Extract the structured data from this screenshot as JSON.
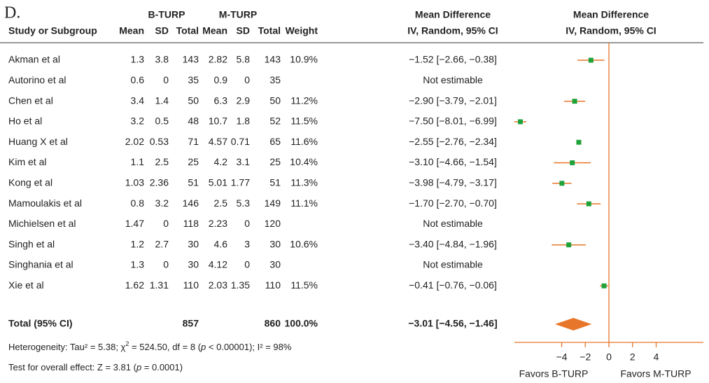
{
  "panel_label": "D.",
  "group_headers": [
    "B-TURP",
    "M-TURP",
    "Mean Difference",
    "Mean Difference"
  ],
  "column_headers": [
    "Study or Subgroup",
    "Mean",
    "SD",
    "Total",
    "Mean",
    "SD",
    "Total",
    "Weight",
    "IV, Random, 95% CI",
    "IV, Random, 95% CI"
  ],
  "studies": [
    {
      "name": "Akman et al",
      "b_mean": 1.3,
      "b_sd": 3.8,
      "b_total": 143,
      "m_mean": 2.82,
      "m_sd": 5.8,
      "m_total": 143,
      "weight": "10.9%",
      "ci_text": "−1.52 [−2.66, −0.38]",
      "md": -1.52,
      "lo": -2.66,
      "hi": -0.38
    },
    {
      "name": "Autorino et al",
      "b_mean": 0.6,
      "b_sd": 0,
      "b_total": 35,
      "m_mean": 0.9,
      "m_sd": 0,
      "m_total": 35,
      "ci_text": "Not estimable"
    },
    {
      "name": "Chen et al",
      "b_mean": 3.4,
      "b_sd": 1.4,
      "b_total": 50,
      "m_mean": 6.3,
      "m_sd": 2.9,
      "m_total": 50,
      "weight": "11.2%",
      "ci_text": "−2.90 [−3.79, −2.01]",
      "md": -2.9,
      "lo": -3.79,
      "hi": -2.01
    },
    {
      "name": "Ho et al",
      "b_mean": 3.2,
      "b_sd": 0.5,
      "b_total": 48,
      "m_mean": 10.7,
      "m_sd": 1.8,
      "m_total": 52,
      "weight": "11.5%",
      "ci_text": "−7.50 [−8.01, −6.99]",
      "md": -7.5,
      "lo": -8.01,
      "hi": -6.99
    },
    {
      "name": "Huang X et al",
      "b_mean": 2.02,
      "b_sd": 0.53,
      "b_total": 71,
      "m_mean": 4.57,
      "m_sd": 0.71,
      "m_total": 65,
      "weight": "11.6%",
      "ci_text": "−2.55 [−2.76, −2.34]",
      "md": -2.55,
      "lo": -2.76,
      "hi": -2.34
    },
    {
      "name": "Kim et al",
      "b_mean": 1.1,
      "b_sd": 2.5,
      "b_total": 25,
      "m_mean": 4.2,
      "m_sd": 3.1,
      "m_total": 25,
      "weight": "10.4%",
      "ci_text": "−3.10 [−4.66, −1.54]",
      "md": -3.1,
      "lo": -4.66,
      "hi": -1.54
    },
    {
      "name": "Kong et al",
      "b_mean": 1.03,
      "b_sd": 2.36,
      "b_total": 51,
      "m_mean": 5.01,
      "m_sd": 1.77,
      "m_total": 51,
      "weight": "11.3%",
      "ci_text": "−3.98 [−4.79, −3.17]",
      "md": -3.98,
      "lo": -4.79,
      "hi": -3.17
    },
    {
      "name": "Mamoulakis et al",
      "b_mean": 0.8,
      "b_sd": 3.2,
      "b_total": 146,
      "m_mean": 2.5,
      "m_sd": 5.3,
      "m_total": 149,
      "weight": "11.1%",
      "ci_text": "−1.70 [−2.70, −0.70]",
      "md": -1.7,
      "lo": -2.7,
      "hi": -0.7
    },
    {
      "name": "Michielsen et al",
      "b_mean": 1.47,
      "b_sd": 0,
      "b_total": 118,
      "m_mean": 2.23,
      "m_sd": 0,
      "m_total": 120,
      "ci_text": "Not estimable"
    },
    {
      "name": "Singh et al",
      "b_mean": 1.2,
      "b_sd": 2.7,
      "b_total": 30,
      "m_mean": 4.6,
      "m_sd": 3,
      "m_total": 30,
      "weight": "10.6%",
      "ci_text": "−3.40 [−4.84, −1.96]",
      "md": -3.4,
      "lo": -4.84,
      "hi": -1.96
    },
    {
      "name": "Singhania et al",
      "b_mean": 1.3,
      "b_sd": 0,
      "b_total": 30,
      "m_mean": 4.12,
      "m_sd": 0,
      "m_total": 30,
      "ci_text": "Not estimable"
    },
    {
      "name": "Xie et al",
      "b_mean": 1.62,
      "b_sd": 1.31,
      "b_total": 110,
      "m_mean": 2.03,
      "m_sd": 1.35,
      "m_total": 110,
      "weight": "11.5%",
      "ci_text": "−0.41 [−0.76, −0.06]",
      "md": -0.41,
      "lo": -0.76,
      "hi": -0.06
    }
  ],
  "total": {
    "name": "Total (95% CI)",
    "b_total": 857,
    "m_total": 860,
    "weight": "100.0%",
    "ci_text": "−3.01 [−4.56, −1.46]",
    "md": -3.01,
    "lo": -4.56,
    "hi": -1.46
  },
  "heterogeneity": [
    "Heterogeneity: Tau² = 5.38; χ",
    "2",
    " = 524.50, df = 8 (",
    "p",
    " < 0.00001); I² = 98%"
  ],
  "overall_effect": [
    "Test for overall effect: Z = 3.81 (",
    "p",
    " = 0.0001)"
  ],
  "axis": {
    "xlim": [
      -8,
      8
    ],
    "xticks": [
      {
        "value": -4,
        "label": "−4"
      },
      {
        "value": -2,
        "label": "−2"
      },
      0,
      2,
      4
    ],
    "left_label": "Favors B-TURP",
    "right_label": "Favors M-TURP",
    "square_color": "#1fa23a",
    "line_color": "#e8762a"
  }
}
